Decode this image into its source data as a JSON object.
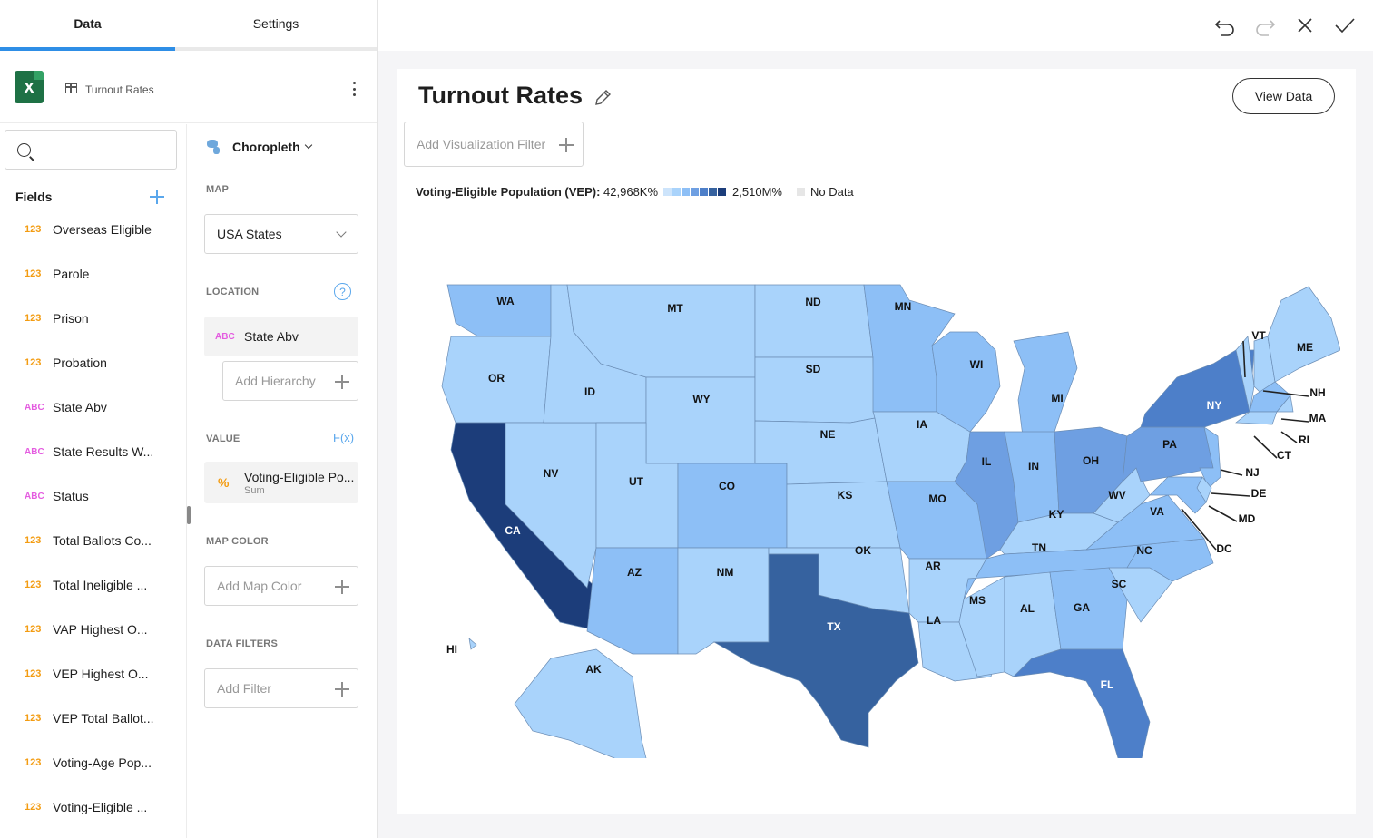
{
  "tabs": [
    {
      "label": "Data"
    },
    {
      "label": "Settings"
    }
  ],
  "datasource": {
    "name": "Turnout Rates",
    "icon": "excel-icon"
  },
  "search": {
    "placeholder": "",
    "value": ""
  },
  "fields": {
    "header": "Fields",
    "items": [
      {
        "type": "123",
        "label": "Overseas Eligible"
      },
      {
        "type": "123",
        "label": "Parole"
      },
      {
        "type": "123",
        "label": "Prison"
      },
      {
        "type": "123",
        "label": "Probation"
      },
      {
        "type": "ABC",
        "label": "State Abv"
      },
      {
        "type": "ABC",
        "label": "State Results W..."
      },
      {
        "type": "ABC",
        "label": "Status"
      },
      {
        "type": "123",
        "label": "Total Ballots Co..."
      },
      {
        "type": "123",
        "label": "Total Ineligible ..."
      },
      {
        "type": "123",
        "label": "VAP Highest O..."
      },
      {
        "type": "123",
        "label": "VEP Highest O..."
      },
      {
        "type": "123",
        "label": "VEP Total Ballot..."
      },
      {
        "type": "123",
        "label": "Voting-Age Pop..."
      },
      {
        "type": "123",
        "label": "Voting-Eligible ..."
      }
    ]
  },
  "config": {
    "viz_type": "Choropleth",
    "map_label": "MAP",
    "map_value": "USA States",
    "location_label": "LOCATION",
    "location_help": "?",
    "location_field": {
      "type": "ABC",
      "label": "State Abv"
    },
    "add_hierarchy": "Add Hierarchy",
    "value_label": "VALUE",
    "fx_label": "F(x)",
    "value_field": {
      "type": "%",
      "label": "Voting-Eligible Po...",
      "agg": "Sum"
    },
    "map_color_label": "MAP COLOR",
    "add_map_color": "Add Map Color",
    "data_filters_label": "DATA FILTERS",
    "add_filter": "Add Filter"
  },
  "viz": {
    "title": "Turnout Rates",
    "view_data": "View Data",
    "add_viz_filter": "Add Visualization Filter",
    "legend": {
      "label": "Voting-Eligible Population (VEP):",
      "min": "42,968K%",
      "max": "2,510M%",
      "no_data": "No Data",
      "colors": [
        "#cde4fb",
        "#a9d3fb",
        "#8dbff6",
        "#6e9fe2",
        "#4d7fc9",
        "#36629f",
        "#1c3d7a"
      ]
    }
  },
  "map_labels": [
    "WA",
    "OR",
    "CA",
    "NV",
    "ID",
    "MT",
    "WY",
    "UT",
    "AZ",
    "CO",
    "NM",
    "ND",
    "SD",
    "NE",
    "KS",
    "OK",
    "TX",
    "MN",
    "IA",
    "MO",
    "AR",
    "LA",
    "WI",
    "IL",
    "MI",
    "IN",
    "OH",
    "KY",
    "TN",
    "MS",
    "AL",
    "GA",
    "FL",
    "SC",
    "NC",
    "VA",
    "WV",
    "PA",
    "NY",
    "VT",
    "NH",
    "ME",
    "MA",
    "RI",
    "CT",
    "NJ",
    "DE",
    "MD",
    "DC",
    "AK",
    "HI"
  ]
}
